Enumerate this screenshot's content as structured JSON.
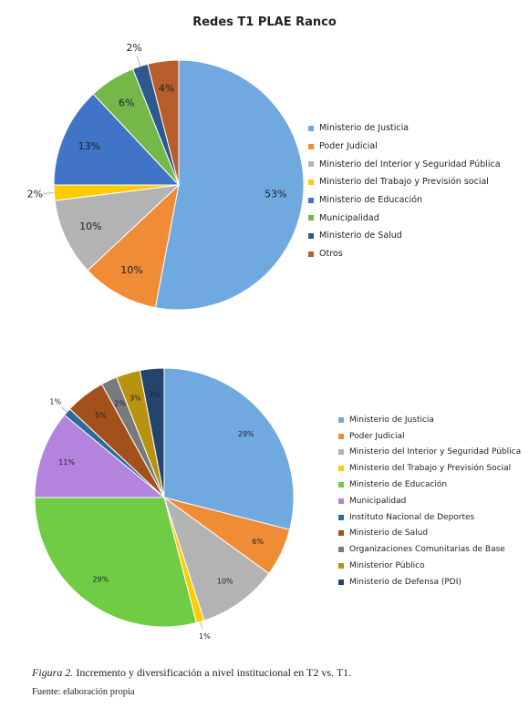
{
  "chart_data": [
    {
      "type": "pie",
      "title": "Redes T1 PLAE Ranco",
      "legend_position": "right",
      "slices": [
        {
          "label": "Ministerio de Justicia",
          "value": 53,
          "value_label": "53%",
          "color": "#70a9e0"
        },
        {
          "label": "Poder Judicial",
          "value": 10,
          "value_label": "10%",
          "color": "#f08c36"
        },
        {
          "label": "Ministerio del Interior y Seguridad Pública",
          "value": 10,
          "value_label": "10%",
          "color": "#b3b3b3"
        },
        {
          "label": "Ministerio del Trabajo y Previsión social",
          "value": 2,
          "value_label": "2%",
          "color": "#ffcc00"
        },
        {
          "label": "Ministerio de Educación",
          "value": 13,
          "value_label": "13%",
          "color": "#3f74c6"
        },
        {
          "label": "Municipalidad",
          "value": 6,
          "value_label": "6%",
          "color": "#74b84a"
        },
        {
          "label": "Ministerio de Salud",
          "value": 2,
          "value_label": "2%",
          "color": "#2c5a8e"
        },
        {
          "label": "Otros",
          "value": 4,
          "value_label": "4%",
          "color": "#b85d2c"
        }
      ]
    },
    {
      "type": "pie",
      "title": "",
      "legend_position": "right",
      "slices": [
        {
          "label": "Ministerio de Justicia",
          "value": 29,
          "value_label": "29%",
          "color": "#70a9e0"
        },
        {
          "label": "Poder Judicial",
          "value": 6,
          "value_label": "6%",
          "color": "#f08c36"
        },
        {
          "label": "Ministerio del Interior y Seguridad Pública",
          "value": 10,
          "value_label": "10%",
          "color": "#b3b3b3"
        },
        {
          "label": "Ministerio del Trabajo y Previsión Social",
          "value": 1,
          "value_label": "1%",
          "color": "#ffcc00"
        },
        {
          "label": "Ministerio de Educación",
          "value": 29,
          "value_label": "29%",
          "color": "#6fcc44"
        },
        {
          "label": "Municipalidad",
          "value": 11,
          "value_label": "11%",
          "color": "#b383de"
        },
        {
          "label": "Instituto Nacional de Deportes",
          "value": 1,
          "value_label": "1%",
          "color": "#2c6a9e"
        },
        {
          "label": "Ministerio de Salud",
          "value": 5,
          "value_label": "5%",
          "color": "#a4501a"
        },
        {
          "label": "Organizaciones Comunitarias de Base",
          "value": 2,
          "value_label": "2%",
          "color": "#7a7a7a"
        },
        {
          "label": "Ministerior Público",
          "value": 3,
          "value_label": "3%",
          "color": "#b8930f"
        },
        {
          "label": "Ministerio de Defensa (PDI)",
          "value": 3,
          "value_label": "3%",
          "color": "#24446e"
        }
      ]
    }
  ],
  "caption": {
    "figure_label": "Figura 2.",
    "text": "Incremento y diversificación  a nivel institucional en T2 vs. T1."
  },
  "source": "Fuente: elaboración propia"
}
